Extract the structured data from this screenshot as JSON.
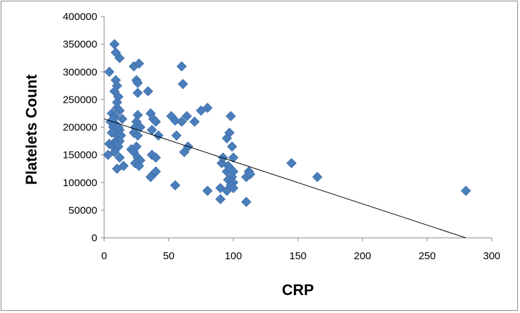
{
  "chart_data": {
    "type": "scatter",
    "title": "",
    "xlabel": "CRP",
    "ylabel": "Platelets Count",
    "xlim": [
      0,
      300
    ],
    "ylim": [
      0,
      400000
    ],
    "x_ticks": [
      0,
      50,
      100,
      150,
      200,
      250,
      300
    ],
    "y_ticks": [
      0,
      50000,
      100000,
      150000,
      200000,
      250000,
      300000,
      350000,
      400000
    ],
    "grid": false,
    "legend": "none",
    "marker": "diamond",
    "marker_color": "#4a7ebb",
    "trendline": {
      "type": "linear",
      "from": [
        0,
        215000
      ],
      "to": [
        280,
        0
      ],
      "color": "#000000"
    },
    "series": [
      {
        "points": [
          [
            8,
            350000
          ],
          [
            9,
            335000
          ],
          [
            12,
            325000
          ],
          [
            4,
            300000
          ],
          [
            9,
            285000
          ],
          [
            10,
            275000
          ],
          [
            8,
            265000
          ],
          [
            11,
            255000
          ],
          [
            10,
            245000
          ],
          [
            6,
            225000
          ],
          [
            10,
            235000
          ],
          [
            12,
            230000
          ],
          [
            8,
            220000
          ],
          [
            14,
            215000
          ],
          [
            5,
            210000
          ],
          [
            7,
            200000
          ],
          [
            9,
            205000
          ],
          [
            12,
            195000
          ],
          [
            8,
            190000
          ],
          [
            10,
            185000
          ],
          [
            13,
            185000
          ],
          [
            9,
            175000
          ],
          [
            12,
            175000
          ],
          [
            4,
            170000
          ],
          [
            7,
            165000
          ],
          [
            11,
            165000
          ],
          [
            3,
            150000
          ],
          [
            8,
            155000
          ],
          [
            12,
            145000
          ],
          [
            10,
            125000
          ],
          [
            15,
            130000
          ],
          [
            6,
            190000
          ],
          [
            10,
            170000
          ],
          [
            7,
            215000
          ],
          [
            11,
            200000
          ],
          [
            23,
            310000
          ],
          [
            27,
            315000
          ],
          [
            25,
            285000
          ],
          [
            26,
            280000
          ],
          [
            26,
            262000
          ],
          [
            34,
            265000
          ],
          [
            26,
            222000
          ],
          [
            25,
            210000
          ],
          [
            24,
            200000
          ],
          [
            23,
            190000
          ],
          [
            28,
            200000
          ],
          [
            26,
            185000
          ],
          [
            25,
            165000
          ],
          [
            21,
            160000
          ],
          [
            23,
            155000
          ],
          [
            26,
            145000
          ],
          [
            28,
            140000
          ],
          [
            24,
            135000
          ],
          [
            27,
            130000
          ],
          [
            36,
            225000
          ],
          [
            38,
            215000
          ],
          [
            40,
            210000
          ],
          [
            37,
            195000
          ],
          [
            42,
            185000
          ],
          [
            37,
            150000
          ],
          [
            40,
            145000
          ],
          [
            38,
            115000
          ],
          [
            36,
            110000
          ],
          [
            40,
            120000
          ],
          [
            60,
            310000
          ],
          [
            61,
            278000
          ],
          [
            52,
            220000
          ],
          [
            55,
            212000
          ],
          [
            60,
            210000
          ],
          [
            64,
            220000
          ],
          [
            70,
            210000
          ],
          [
            75,
            230000
          ],
          [
            80,
            235000
          ],
          [
            56,
            185000
          ],
          [
            65,
            165000
          ],
          [
            62,
            155000
          ],
          [
            55,
            95000
          ],
          [
            80,
            85000
          ],
          [
            90,
            90000
          ],
          [
            90,
            70000
          ],
          [
            91,
            135000
          ],
          [
            92,
            145000
          ],
          [
            95,
            120000
          ],
          [
            98,
            220000
          ],
          [
            97,
            190000
          ],
          [
            95,
            180000
          ],
          [
            99,
            165000
          ],
          [
            100,
            145000
          ],
          [
            96,
            130000
          ],
          [
            98,
            125000
          ],
          [
            100,
            120000
          ],
          [
            99,
            110000
          ],
          [
            96,
            105000
          ],
          [
            100,
            100000
          ],
          [
            98,
            95000
          ],
          [
            100,
            90000
          ],
          [
            95,
            85000
          ],
          [
            110,
            110000
          ],
          [
            112,
            120000
          ],
          [
            113,
            115000
          ],
          [
            110,
            65000
          ],
          [
            145,
            135000
          ],
          [
            165,
            110000
          ],
          [
            280,
            85000
          ]
        ]
      }
    ]
  }
}
